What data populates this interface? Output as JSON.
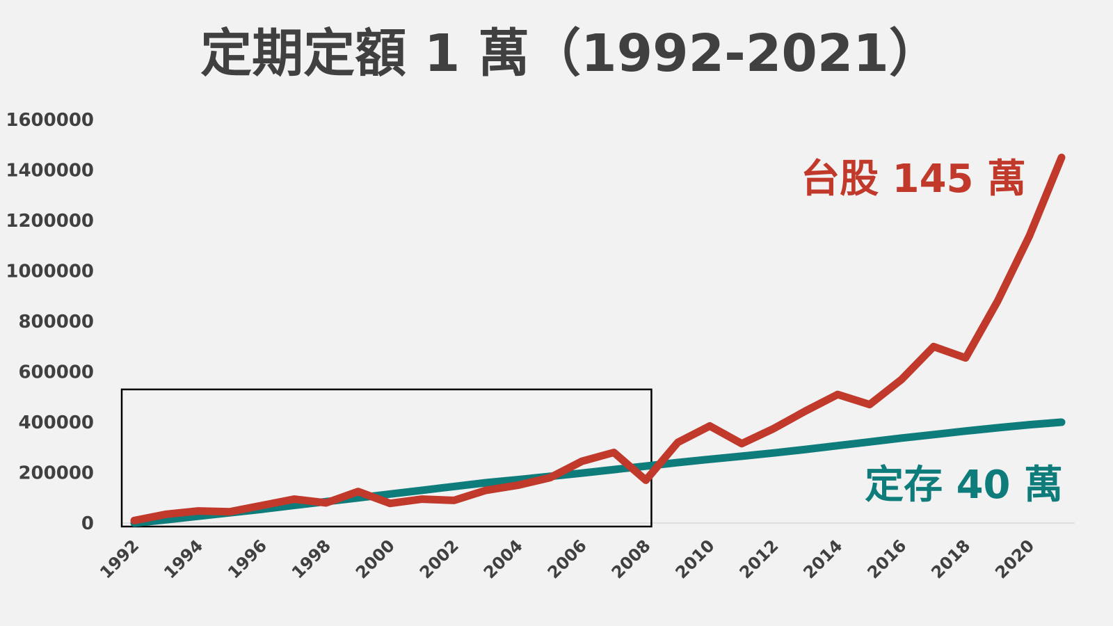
{
  "chart_data": {
    "type": "line",
    "title": "定期定額 1 萬（1992-2021）",
    "xlabel": "",
    "ylabel": "",
    "x": [
      1992,
      1993,
      1994,
      1995,
      1996,
      1997,
      1998,
      1999,
      2000,
      2001,
      2002,
      2003,
      2004,
      2005,
      2006,
      2007,
      2008,
      2009,
      2010,
      2011,
      2012,
      2013,
      2014,
      2015,
      2016,
      2017,
      2018,
      2019,
      2020,
      2021
    ],
    "x_tick_labels": [
      "1992",
      "1994",
      "1996",
      "1998",
      "2000",
      "2002",
      "2004",
      "2006",
      "2008",
      "2010",
      "2012",
      "2014",
      "2016",
      "2018",
      "2020"
    ],
    "ylim": [
      0,
      1600000
    ],
    "y_tick_labels": [
      "0",
      "200000",
      "400000",
      "600000",
      "800000",
      "1000000",
      "1200000",
      "1400000",
      "1600000"
    ],
    "grid": false,
    "series": [
      {
        "color": "#c0392b",
        "values": [
          10000,
          35000,
          48000,
          45000,
          70000,
          95000,
          80000,
          125000,
          78000,
          95000,
          90000,
          130000,
          150000,
          180000,
          245000,
          280000,
          170000,
          320000,
          385000,
          315000,
          375000,
          445000,
          510000,
          470000,
          570000,
          700000,
          655000,
          880000,
          1140000,
          1450000
        ]
      },
      {
        "color": "#0e7c7b",
        "values": [
          0,
          13000,
          27000,
          41000,
          55000,
          70000,
          85000,
          100000,
          115000,
          130000,
          145000,
          160000,
          172000,
          185000,
          198000,
          212000,
          226000,
          240000,
          253000,
          265000,
          278000,
          292000,
          307000,
          322000,
          337000,
          351000,
          365000,
          378000,
          390000,
          400000
        ]
      }
    ],
    "annotations": [
      {
        "text": "台股 145 萬",
        "color": "#c0392b"
      },
      {
        "text": "定存 40  萬",
        "color": "#0e7c7b"
      }
    ],
    "highlight_box": {
      "x_range": [
        1992,
        2008
      ],
      "y_range": [
        0,
        530000
      ],
      "color": "#000000"
    }
  }
}
